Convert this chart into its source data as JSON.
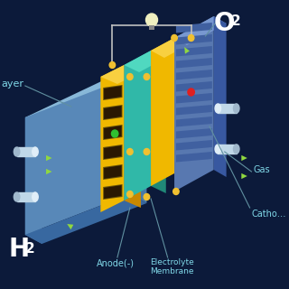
{
  "bg_color": "#0c1a3a",
  "title_O2": "O",
  "title_H2": "H",
  "label_anode": "Anode(-)",
  "label_membrane": "Electrolyte\nMembrane",
  "label_cathode": "Catho…",
  "label_gas": "Gas",
  "label_layer": "ayer",
  "text_color_main": "#80d8e8",
  "text_color_white": "#ffffff",
  "yellow_color": "#f0b800",
  "yellow_dark": "#c88800",
  "yellow_light": "#f8d040",
  "teal_color": "#30b8a8",
  "teal_dark": "#208878",
  "teal_light": "#50d8c0",
  "blue_plate": "#5878b0",
  "blue_plate_light": "#7898d0",
  "blue_plate_dark": "#3858a0",
  "blue_base_left": "#5888b8",
  "blue_base_top": "#88b8d8",
  "blue_base_right": "#4878a8",
  "blue_base_bottom": "#3868a0",
  "stripe_color": "#4060a0",
  "green_arrow_color": "#90d840",
  "dot_color": "#f0c030",
  "pipe_color": "#c0d8e8",
  "wire_color": "#c0c0c0",
  "bulb_color": "#f0f0c0"
}
